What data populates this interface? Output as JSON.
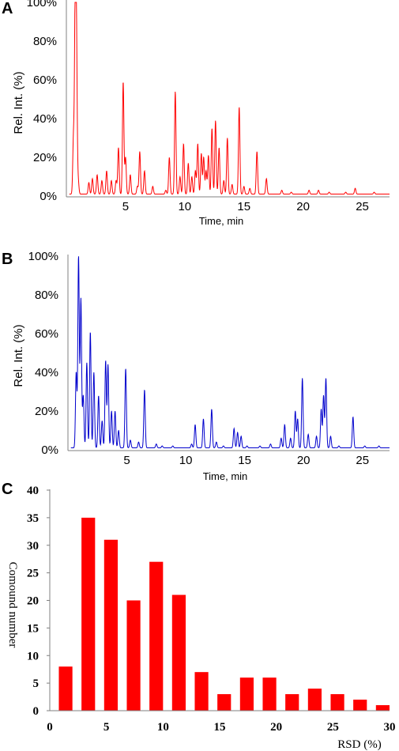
{
  "chart_data": [
    {
      "panel": "A",
      "type": "line",
      "xlabel": "Time, min",
      "ylabel": "Rel. Int. (%)",
      "xlim": [
        0,
        27.3
      ],
      "ylim": [
        0,
        100
      ],
      "x_ticks": [
        "5",
        "10",
        "15",
        "20",
        "25"
      ],
      "y_ticks": [
        "0%",
        "20%",
        "40%",
        "60%",
        "80%",
        "100%"
      ],
      "color": "#ff0000",
      "baseline": 1,
      "peaks": [
        {
          "x": 0.6,
          "y": 30
        },
        {
          "x": 0.75,
          "y": 100
        },
        {
          "x": 0.85,
          "y": 78
        },
        {
          "x": 1.0,
          "y": 8
        },
        {
          "x": 1.9,
          "y": 7
        },
        {
          "x": 2.2,
          "y": 9
        },
        {
          "x": 2.6,
          "y": 11
        },
        {
          "x": 3.0,
          "y": 8
        },
        {
          "x": 3.4,
          "y": 13
        },
        {
          "x": 3.8,
          "y": 8
        },
        {
          "x": 4.2,
          "y": 8
        },
        {
          "x": 4.4,
          "y": 25
        },
        {
          "x": 4.8,
          "y": 59
        },
        {
          "x": 5.0,
          "y": 20
        },
        {
          "x": 5.4,
          "y": 11
        },
        {
          "x": 6.0,
          "y": 5
        },
        {
          "x": 6.2,
          "y": 23
        },
        {
          "x": 6.6,
          "y": 13
        },
        {
          "x": 7.3,
          "y": 5
        },
        {
          "x": 8.4,
          "y": 3
        },
        {
          "x": 8.7,
          "y": 20
        },
        {
          "x": 9.2,
          "y": 54
        },
        {
          "x": 9.6,
          "y": 10
        },
        {
          "x": 9.9,
          "y": 27
        },
        {
          "x": 10.3,
          "y": 17
        },
        {
          "x": 10.6,
          "y": 10
        },
        {
          "x": 10.9,
          "y": 13
        },
        {
          "x": 11.1,
          "y": 27
        },
        {
          "x": 11.4,
          "y": 22
        },
        {
          "x": 11.6,
          "y": 20
        },
        {
          "x": 11.8,
          "y": 13
        },
        {
          "x": 12.0,
          "y": 21
        },
        {
          "x": 12.3,
          "y": 35
        },
        {
          "x": 12.6,
          "y": 39
        },
        {
          "x": 12.9,
          "y": 25
        },
        {
          "x": 13.3,
          "y": 8
        },
        {
          "x": 13.6,
          "y": 30
        },
        {
          "x": 14.0,
          "y": 6
        },
        {
          "x": 14.6,
          "y": 46
        },
        {
          "x": 15.0,
          "y": 5
        },
        {
          "x": 15.5,
          "y": 4
        },
        {
          "x": 16.1,
          "y": 23
        },
        {
          "x": 16.9,
          "y": 9
        },
        {
          "x": 18.2,
          "y": 3
        },
        {
          "x": 19.0,
          "y": 2
        },
        {
          "x": 20.5,
          "y": 3
        },
        {
          "x": 21.3,
          "y": 3
        },
        {
          "x": 22.2,
          "y": 2
        },
        {
          "x": 23.6,
          "y": 2
        },
        {
          "x": 24.4,
          "y": 4
        },
        {
          "x": 26.0,
          "y": 2
        }
      ]
    },
    {
      "panel": "B",
      "type": "line",
      "xlabel": "Time,  min",
      "ylabel": "Rel. Int. (%)",
      "xlim": [
        0,
        27.3
      ],
      "ylim": [
        0,
        100
      ],
      "x_ticks": [
        "5",
        "10",
        "15",
        "20",
        "25"
      ],
      "y_ticks": [
        "0%",
        "20%",
        "40%",
        "60%",
        "80%",
        "100%"
      ],
      "color": "#0000cc",
      "baseline": 1,
      "peaks": [
        {
          "x": 0.7,
          "y": 40
        },
        {
          "x": 0.9,
          "y": 100
        },
        {
          "x": 1.1,
          "y": 78
        },
        {
          "x": 1.3,
          "y": 28
        },
        {
          "x": 1.6,
          "y": 45
        },
        {
          "x": 1.9,
          "y": 61
        },
        {
          "x": 2.2,
          "y": 40
        },
        {
          "x": 2.6,
          "y": 28
        },
        {
          "x": 2.9,
          "y": 15
        },
        {
          "x": 3.2,
          "y": 46
        },
        {
          "x": 3.4,
          "y": 44
        },
        {
          "x": 3.7,
          "y": 20
        },
        {
          "x": 4.0,
          "y": 20
        },
        {
          "x": 4.3,
          "y": 10
        },
        {
          "x": 4.9,
          "y": 42
        },
        {
          "x": 5.3,
          "y": 5
        },
        {
          "x": 6.0,
          "y": 4
        },
        {
          "x": 6.5,
          "y": 31
        },
        {
          "x": 7.5,
          "y": 3
        },
        {
          "x": 8.0,
          "y": 2
        },
        {
          "x": 8.9,
          "y": 2
        },
        {
          "x": 10.5,
          "y": 3
        },
        {
          "x": 10.8,
          "y": 13
        },
        {
          "x": 11.5,
          "y": 16
        },
        {
          "x": 12.2,
          "y": 21
        },
        {
          "x": 12.6,
          "y": 4
        },
        {
          "x": 13.2,
          "y": 2
        },
        {
          "x": 14.1,
          "y": 11
        },
        {
          "x": 14.4,
          "y": 9
        },
        {
          "x": 14.7,
          "y": 7
        },
        {
          "x": 15.2,
          "y": 2
        },
        {
          "x": 16.3,
          "y": 2
        },
        {
          "x": 17.2,
          "y": 3
        },
        {
          "x": 18.1,
          "y": 6
        },
        {
          "x": 18.4,
          "y": 13
        },
        {
          "x": 18.9,
          "y": 6
        },
        {
          "x": 19.3,
          "y": 20
        },
        {
          "x": 19.5,
          "y": 16
        },
        {
          "x": 19.9,
          "y": 37
        },
        {
          "x": 20.4,
          "y": 8
        },
        {
          "x": 21.1,
          "y": 7
        },
        {
          "x": 21.5,
          "y": 21
        },
        {
          "x": 21.7,
          "y": 28
        },
        {
          "x": 21.9,
          "y": 37
        },
        {
          "x": 22.3,
          "y": 7
        },
        {
          "x": 23.0,
          "y": 2
        },
        {
          "x": 24.2,
          "y": 17
        },
        {
          "x": 25.2,
          "y": 2
        },
        {
          "x": 26.4,
          "y": 2
        }
      ]
    },
    {
      "panel": "C",
      "type": "bar",
      "xlabel": "RSD (%)",
      "ylabel": "Comound number",
      "xlim": [
        0,
        30
      ],
      "ylim": [
        0,
        40
      ],
      "x_ticks": [
        "0",
        "5",
        "10",
        "15",
        "20",
        "25",
        "30"
      ],
      "y_ticks": [
        "0",
        "5",
        "10",
        "15",
        "20",
        "25",
        "30",
        "35",
        "40"
      ],
      "color": "#ff0000",
      "x": [
        3,
        5,
        7,
        9,
        11,
        13,
        15,
        17,
        19,
        21,
        23,
        25,
        27,
        29,
        31
      ],
      "values": [
        8,
        35,
        31,
        20,
        27,
        21,
        7,
        3,
        6,
        6,
        3,
        4,
        3,
        2,
        1
      ]
    }
  ]
}
